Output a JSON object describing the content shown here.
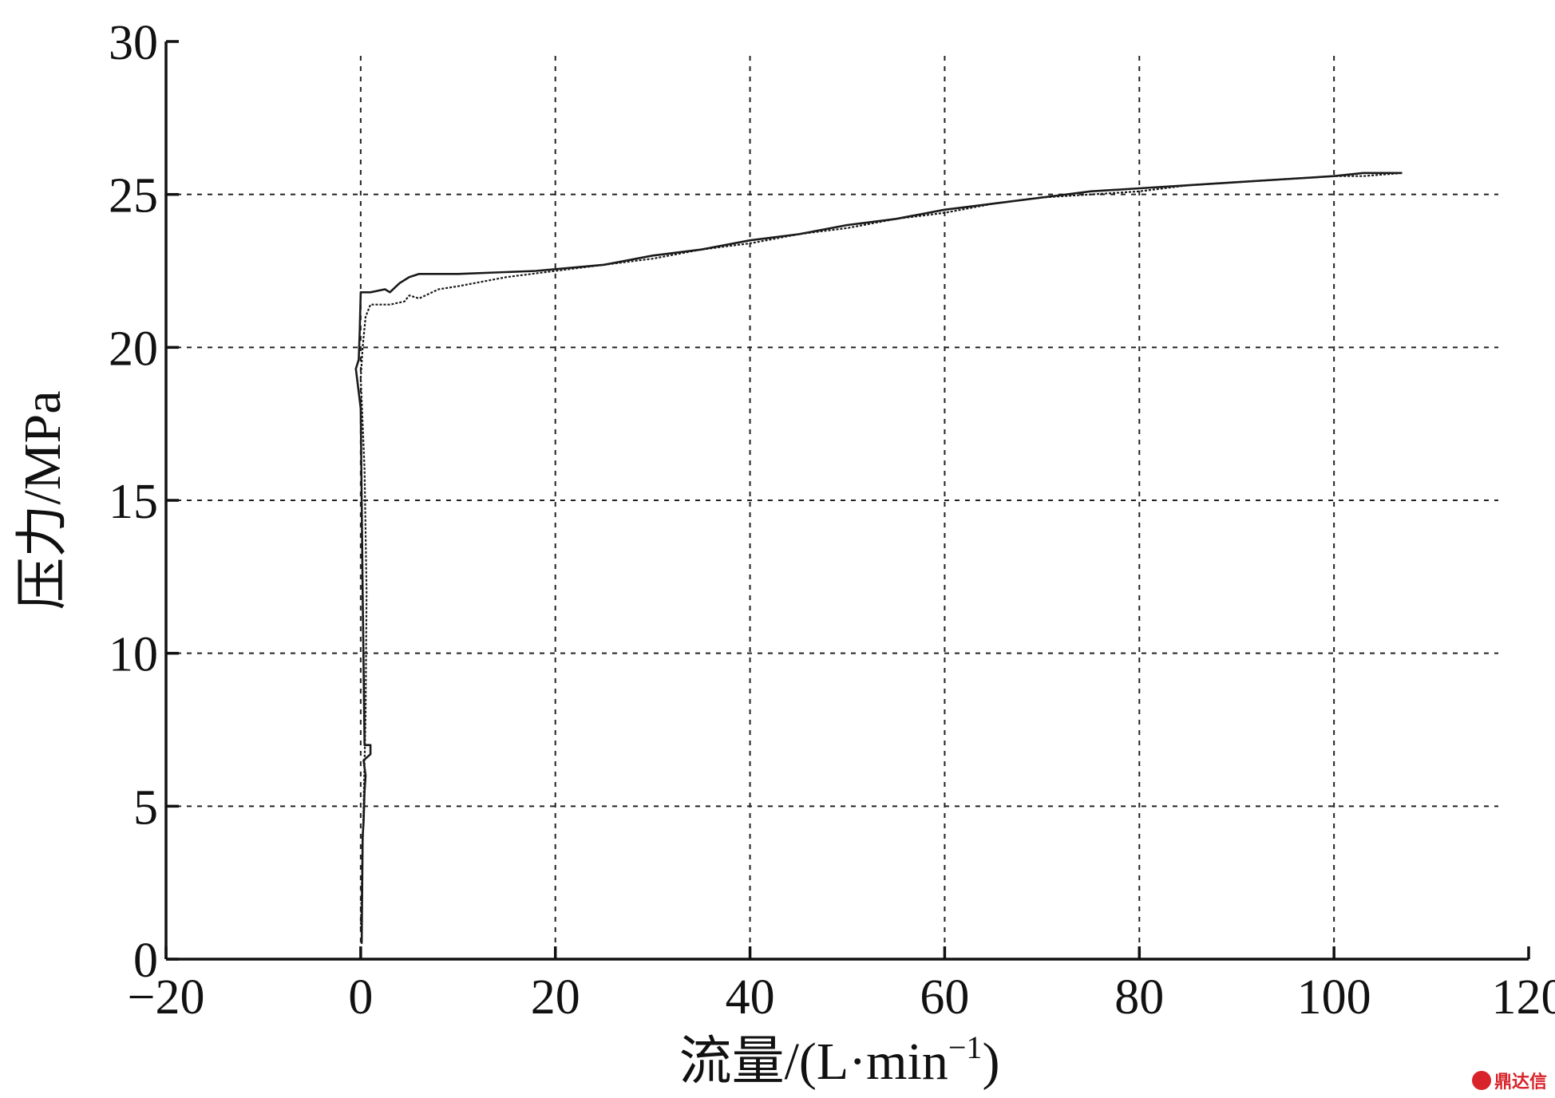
{
  "chart_data": {
    "type": "line",
    "xlabel": "流量/(L·min",
    "xlabel_sup": "−1",
    "xlabel_close": ")",
    "ylabel": "压力/MPa",
    "xlim": [
      -20,
      120
    ],
    "ylim": [
      0,
      30
    ],
    "xticks": [
      -20,
      0,
      20,
      40,
      60,
      80,
      100,
      120
    ],
    "yticks": [
      0,
      5,
      10,
      15,
      20,
      25,
      30
    ],
    "xtick_labels": [
      "−20",
      "0",
      "20",
      "40",
      "60",
      "80",
      "100",
      "120"
    ],
    "ytick_labels": [
      "0",
      "5",
      "10",
      "15",
      "20",
      "25",
      "30"
    ],
    "grid": "dashed",
    "legend": "none",
    "series": [
      {
        "style": "solid",
        "x": [
          0.1,
          0.2,
          0.3,
          0.4,
          0.5,
          0.3,
          1.0,
          1.0,
          0.4,
          0.2,
          0.0,
          -0.5,
          -0.2,
          -0.1,
          0.0,
          1.0,
          2.5,
          3.0,
          4.0,
          5.0,
          6.0,
          10,
          18,
          25,
          30,
          35,
          40,
          45,
          50,
          55,
          60,
          65,
          70,
          75,
          80,
          85,
          90,
          95,
          100,
          103,
          107
        ],
        "y": [
          0.5,
          4.0,
          4.5,
          5.5,
          6.0,
          6.5,
          6.7,
          7.0,
          7.0,
          12.0,
          18.0,
          19.3,
          19.6,
          20.5,
          21.8,
          21.8,
          21.9,
          21.8,
          22.1,
          22.3,
          22.4,
          22.4,
          22.5,
          22.7,
          23.0,
          23.2,
          23.5,
          23.7,
          24.0,
          24.2,
          24.5,
          24.7,
          24.9,
          25.1,
          25.2,
          25.3,
          25.4,
          25.5,
          25.6,
          25.7,
          25.7
        ]
      },
      {
        "style": "dotted",
        "x": [
          0.0,
          0.3,
          0.5,
          0.6,
          0.4,
          0.0,
          0.2,
          0.5,
          1.0,
          3.0,
          4.5,
          5.0,
          6.0,
          8.0,
          10,
          15,
          20,
          25,
          30,
          35,
          40,
          45,
          50,
          55,
          60,
          65,
          70,
          75,
          80,
          85,
          90,
          95,
          100,
          103,
          107
        ],
        "y": [
          1.0,
          5.0,
          8.0,
          12.0,
          16.0,
          19.0,
          20.0,
          21.0,
          21.4,
          21.4,
          21.5,
          21.7,
          21.6,
          21.9,
          22.0,
          22.3,
          22.5,
          22.7,
          22.9,
          23.2,
          23.4,
          23.7,
          23.9,
          24.2,
          24.4,
          24.7,
          24.9,
          25.0,
          25.1,
          25.3,
          25.4,
          25.5,
          25.6,
          25.6,
          25.7
        ]
      }
    ]
  },
  "watermark": {
    "text": "鼎达信"
  }
}
